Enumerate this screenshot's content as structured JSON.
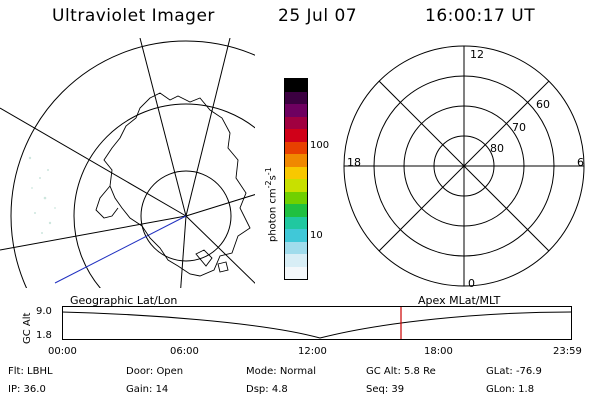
{
  "header": {
    "title": "Ultraviolet Imager",
    "date": "25 Jul 07",
    "time": "16:00:17 UT"
  },
  "colorbar": {
    "unit_main": "photon cm",
    "unit_exp1": "-2",
    "unit_mid": "s",
    "unit_exp2": "-1",
    "ticks": [
      "100",
      "10"
    ],
    "colors": [
      "#000000",
      "#3b0040",
      "#6e0060",
      "#a00040",
      "#d00018",
      "#e84000",
      "#f08800",
      "#f8c800",
      "#c8e000",
      "#70d000",
      "#20c040",
      "#20c8a0",
      "#40c8d8",
      "#a0dcec",
      "#d8eef6",
      "#f4f8fb"
    ]
  },
  "left_panel_label": "Geographic Lat/Lon",
  "right_panel_label": "Apex  MLat/MLT",
  "polar_grid": {
    "mlt_labels": [
      "12",
      "18",
      "6",
      "0"
    ],
    "lat_labels": [
      "60",
      "70",
      "80"
    ]
  },
  "timeline": {
    "y_axis_label": "GC Alt",
    "y_values": [
      "9.0",
      "1.8"
    ],
    "x_ticks": [
      "00:00",
      "06:00",
      "12:00",
      "18:00",
      "23:59"
    ],
    "current_time_marker_color": "#cc0000"
  },
  "footer": {
    "row1": [
      {
        "label": "Flt:",
        "value": "LBHL"
      },
      {
        "label": "Door:",
        "value": "Open"
      },
      {
        "label": "Mode:",
        "value": "Normal"
      },
      {
        "label": "GC Alt:",
        "value": "5.8 Re"
      },
      {
        "label": "GLat:",
        "value": "-76.9"
      }
    ],
    "row2": [
      {
        "label": "IP:",
        "value": "36.0"
      },
      {
        "label": "Gain:",
        "value": "14"
      },
      {
        "label": "Dsp:",
        "value": "4.8"
      },
      {
        "label": "Seq:",
        "value": "39"
      },
      {
        "label": "GLon:",
        "value": "1.8"
      }
    ]
  }
}
